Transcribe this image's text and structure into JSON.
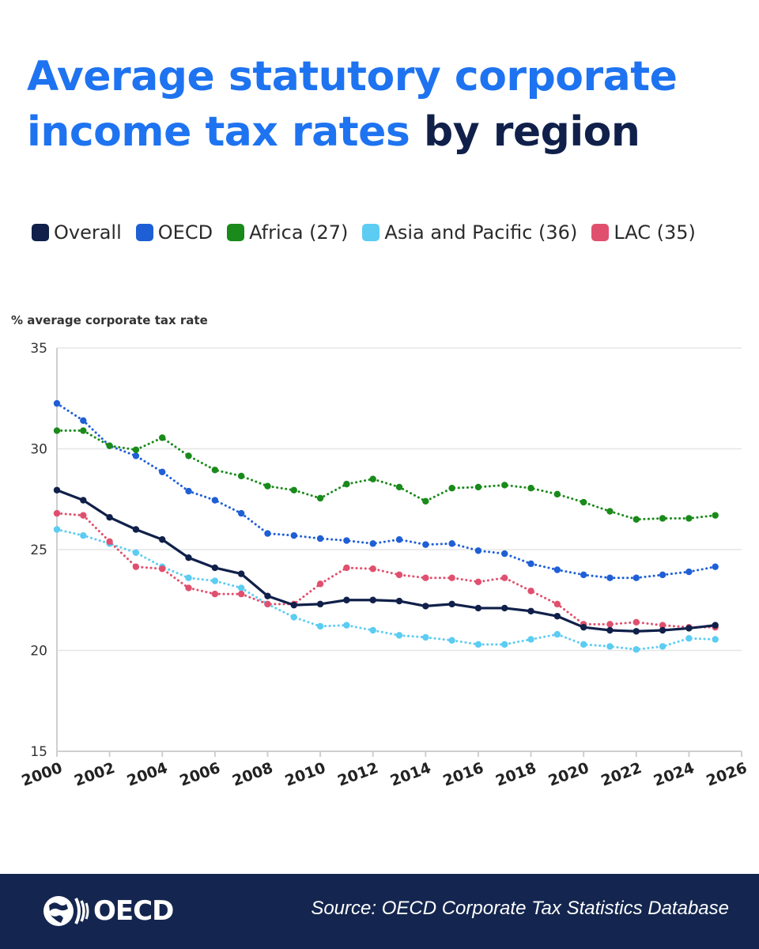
{
  "title": {
    "highlight": "Average statutory corporate income tax rates",
    "rest": "by region"
  },
  "footer": {
    "logo_text": "OECD",
    "source": "Source: OECD Corporate Tax Statistics Database"
  },
  "chart_data": {
    "type": "line",
    "title": "Average statutory corporate income tax rates by region",
    "ylabel": "% average corporate tax rate",
    "xlabel": "",
    "xlim": [
      2000,
      2026
    ],
    "ylim": [
      15,
      35
    ],
    "x_ticks": [
      "2000",
      "2002",
      "2004",
      "2006",
      "2008",
      "2010",
      "2012",
      "2014",
      "2016",
      "2018",
      "2020",
      "2022",
      "2024",
      "2026"
    ],
    "y_ticks": [
      "15",
      "20",
      "25",
      "30",
      "35"
    ],
    "grid": "horizontal",
    "legend_position": "top",
    "x": [
      2000,
      2001,
      2002,
      2003,
      2004,
      2005,
      2006,
      2007,
      2008,
      2009,
      2010,
      2011,
      2012,
      2013,
      2014,
      2015,
      2016,
      2017,
      2018,
      2019,
      2020,
      2021,
      2022,
      2023,
      2024,
      2025
    ],
    "series": [
      {
        "name": "Overall",
        "color": "#10204a",
        "style": "solid",
        "values": [
          27.95,
          27.45,
          26.6,
          26.0,
          25.5,
          24.6,
          24.1,
          23.8,
          22.7,
          22.25,
          22.3,
          22.5,
          22.5,
          22.45,
          22.2,
          22.3,
          22.1,
          22.1,
          21.95,
          21.7,
          21.15,
          21.0,
          20.95,
          21.0,
          21.1,
          21.25
        ]
      },
      {
        "name": "OECD",
        "color": "#1f5fd6",
        "style": "dotted",
        "values": [
          32.25,
          31.4,
          30.15,
          29.65,
          28.85,
          27.9,
          27.45,
          26.8,
          25.8,
          25.7,
          25.55,
          25.45,
          25.3,
          25.5,
          25.25,
          25.3,
          24.95,
          24.8,
          24.3,
          24.0,
          23.75,
          23.6,
          23.6,
          23.75,
          23.9,
          24.15
        ]
      },
      {
        "name": "Africa (27)",
        "color": "#1a8a1a",
        "style": "dotted",
        "values": [
          30.9,
          30.9,
          30.15,
          29.95,
          30.55,
          29.65,
          28.95,
          28.65,
          28.15,
          27.95,
          27.55,
          28.25,
          28.5,
          28.1,
          27.4,
          28.05,
          28.1,
          28.2,
          28.05,
          27.75,
          27.35,
          26.9,
          26.5,
          26.55,
          26.55,
          26.7
        ]
      },
      {
        "name": "Asia and Pacific (36)",
        "color": "#5cccf2",
        "style": "dotted",
        "values": [
          26.0,
          25.7,
          25.3,
          24.85,
          24.15,
          23.6,
          23.45,
          23.1,
          22.3,
          21.65,
          21.2,
          21.25,
          21.0,
          20.75,
          20.65,
          20.5,
          20.3,
          20.3,
          20.55,
          20.8,
          20.3,
          20.2,
          20.05,
          20.2,
          20.6,
          20.55
        ]
      },
      {
        "name": "LAC (35)",
        "color": "#e0506e",
        "style": "dotted",
        "values": [
          26.8,
          26.7,
          25.4,
          24.15,
          24.05,
          23.1,
          22.8,
          22.8,
          22.3,
          22.3,
          23.3,
          24.1,
          24.05,
          23.75,
          23.6,
          23.6,
          23.4,
          23.6,
          22.95,
          22.3,
          21.3,
          21.3,
          21.4,
          21.25,
          21.15,
          21.15
        ]
      }
    ]
  }
}
